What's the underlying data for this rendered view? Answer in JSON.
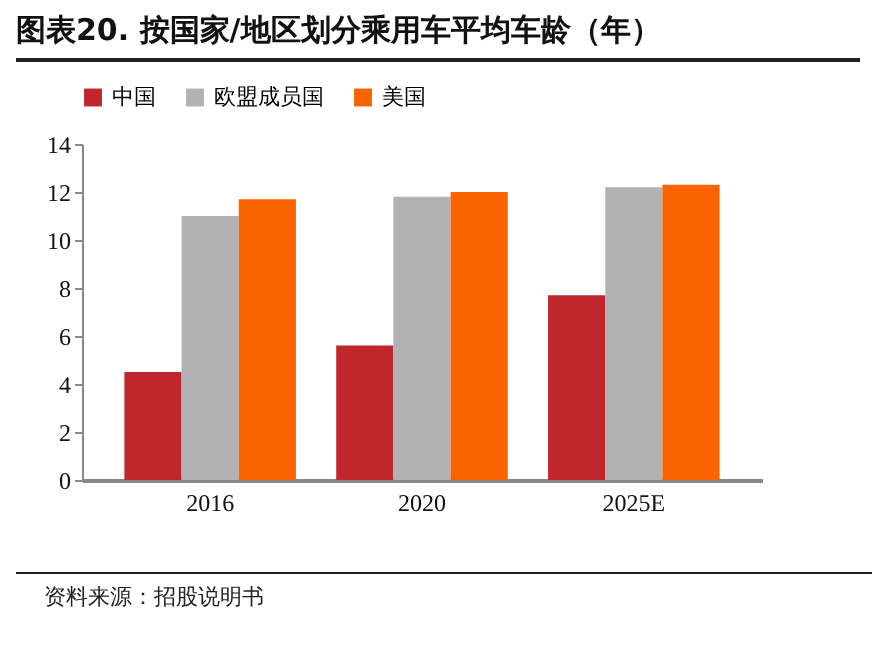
{
  "chart_data": {
    "type": "bar",
    "title": "图表20. 按国家/地区划分乘用车平均车龄（年）",
    "categories": [
      "2016",
      "2020",
      "2025E"
    ],
    "series": [
      {
        "name": "中国",
        "color": "#c0272d",
        "values": [
          4.5,
          5.6,
          7.7
        ]
      },
      {
        "name": "欧盟成员国",
        "color": "#b2b2b2",
        "values": [
          11.0,
          11.8,
          12.2
        ]
      },
      {
        "name": "美国",
        "color": "#fa6400",
        "values": [
          11.7,
          12.0,
          12.3
        ]
      }
    ],
    "ylim": [
      0,
      14
    ],
    "yticks": [
      0,
      2,
      4,
      6,
      8,
      10,
      12,
      14
    ],
    "grid": false,
    "legend": "top",
    "annotations": [
      "资料来源：招股说明书"
    ]
  }
}
